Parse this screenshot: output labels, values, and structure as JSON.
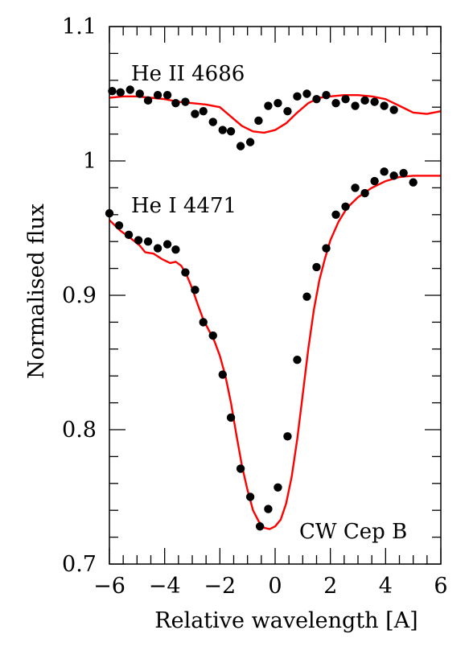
{
  "chart_data": {
    "type": "scatter",
    "title": "",
    "xlabel": "Relative wavelength [A]",
    "ylabel": "Normalised flux",
    "xlim": [
      -6,
      6
    ],
    "ylim": [
      0.7,
      1.1
    ],
    "xticks": [
      -6,
      -4,
      -2,
      0,
      2,
      4,
      6
    ],
    "xtick_labels": [
      "−6",
      "−4",
      "−2",
      "0",
      "2",
      "4",
      "6"
    ],
    "yticks": [
      0.7,
      0.8,
      0.9,
      1.0,
      1.1
    ],
    "ytick_labels": [
      "0.7",
      "0.8",
      "0.9",
      "1",
      "1.1"
    ],
    "grid": false,
    "annotations": {
      "he2": "He II 4686",
      "he1": "He I 4471",
      "star": "CW Cep B"
    },
    "colors": {
      "observed": "#000000",
      "model": "#ff0000"
    },
    "series": [
      {
        "name": "He II 4686",
        "kind": "observed",
        "points": [
          [
            -5.9,
            1.052
          ],
          [
            -5.6,
            1.051
          ],
          [
            -5.25,
            1.053
          ],
          [
            -4.9,
            1.05
          ],
          [
            -4.6,
            1.045
          ],
          [
            -4.25,
            1.049
          ],
          [
            -3.9,
            1.049
          ],
          [
            -3.6,
            1.043
          ],
          [
            -3.25,
            1.044
          ],
          [
            -2.9,
            1.035
          ],
          [
            -2.6,
            1.037
          ],
          [
            -2.25,
            1.029
          ],
          [
            -1.9,
            1.023
          ],
          [
            -1.6,
            1.022
          ],
          [
            -1.25,
            1.011
          ],
          [
            -0.9,
            1.014
          ],
          [
            -0.6,
            1.03
          ],
          [
            -0.25,
            1.041
          ],
          [
            0.1,
            1.043
          ],
          [
            0.45,
            1.037
          ],
          [
            0.8,
            1.048
          ],
          [
            1.15,
            1.05
          ],
          [
            1.5,
            1.046
          ],
          [
            1.85,
            1.049
          ],
          [
            2.2,
            1.043
          ],
          [
            2.55,
            1.046
          ],
          [
            2.9,
            1.041
          ],
          [
            3.25,
            1.045
          ],
          [
            3.6,
            1.044
          ],
          [
            3.95,
            1.041
          ],
          [
            4.3,
            1.038
          ]
        ]
      },
      {
        "name": "He II 4686",
        "kind": "model",
        "points": [
          [
            -6.0,
            1.047
          ],
          [
            -5.5,
            1.048
          ],
          [
            -5.0,
            1.048
          ],
          [
            -4.5,
            1.047
          ],
          [
            -4.0,
            1.046
          ],
          [
            -3.5,
            1.044
          ],
          [
            -3.0,
            1.043
          ],
          [
            -2.5,
            1.042
          ],
          [
            -2.0,
            1.04
          ],
          [
            -1.6,
            1.033
          ],
          [
            -1.2,
            1.026
          ],
          [
            -0.8,
            1.022
          ],
          [
            -0.4,
            1.021
          ],
          [
            0.0,
            1.023
          ],
          [
            0.4,
            1.028
          ],
          [
            0.8,
            1.036
          ],
          [
            1.2,
            1.043
          ],
          [
            1.6,
            1.047
          ],
          [
            2.0,
            1.048
          ],
          [
            2.5,
            1.049
          ],
          [
            3.0,
            1.049
          ],
          [
            3.5,
            1.048
          ],
          [
            4.0,
            1.046
          ],
          [
            4.5,
            1.041
          ],
          [
            5.0,
            1.036
          ],
          [
            5.5,
            1.035
          ],
          [
            6.0,
            1.037
          ]
        ]
      },
      {
        "name": "He I 4471",
        "kind": "observed",
        "points": [
          [
            -6.0,
            0.961
          ],
          [
            -5.65,
            0.952
          ],
          [
            -5.3,
            0.945
          ],
          [
            -4.95,
            0.941
          ],
          [
            -4.6,
            0.94
          ],
          [
            -4.25,
            0.935
          ],
          [
            -3.9,
            0.938
          ],
          [
            -3.6,
            0.934
          ],
          [
            -3.25,
            0.917
          ],
          [
            -2.9,
            0.904
          ],
          [
            -2.6,
            0.88
          ],
          [
            -2.25,
            0.87
          ],
          [
            -1.9,
            0.841
          ],
          [
            -1.6,
            0.809
          ],
          [
            -1.25,
            0.771
          ],
          [
            -0.9,
            0.75
          ],
          [
            -0.55,
            0.728
          ],
          [
            -0.25,
            0.741
          ],
          [
            0.1,
            0.757
          ],
          [
            0.45,
            0.795
          ],
          [
            0.8,
            0.852
          ],
          [
            1.15,
            0.899
          ],
          [
            1.5,
            0.921
          ],
          [
            1.85,
            0.935
          ],
          [
            2.2,
            0.96
          ],
          [
            2.55,
            0.966
          ],
          [
            2.9,
            0.98
          ],
          [
            3.25,
            0.976
          ],
          [
            3.6,
            0.985
          ],
          [
            3.95,
            0.992
          ],
          [
            4.3,
            0.989
          ],
          [
            4.65,
            0.991
          ],
          [
            5.0,
            0.984
          ]
        ]
      },
      {
        "name": "He I 4471",
        "kind": "model",
        "points": [
          [
            -6.0,
            0.956
          ],
          [
            -5.6,
            0.948
          ],
          [
            -5.2,
            0.942
          ],
          [
            -4.9,
            0.937
          ],
          [
            -4.7,
            0.932
          ],
          [
            -4.4,
            0.931
          ],
          [
            -4.1,
            0.927
          ],
          [
            -3.8,
            0.924
          ],
          [
            -3.6,
            0.925
          ],
          [
            -3.4,
            0.922
          ],
          [
            -3.2,
            0.915
          ],
          [
            -3.0,
            0.905
          ],
          [
            -2.8,
            0.893
          ],
          [
            -2.6,
            0.882
          ],
          [
            -2.4,
            0.874
          ],
          [
            -2.2,
            0.866
          ],
          [
            -2.0,
            0.855
          ],
          [
            -1.8,
            0.84
          ],
          [
            -1.6,
            0.82
          ],
          [
            -1.4,
            0.796
          ],
          [
            -1.2,
            0.773
          ],
          [
            -1.0,
            0.755
          ],
          [
            -0.8,
            0.74
          ],
          [
            -0.6,
            0.732
          ],
          [
            -0.4,
            0.727
          ],
          [
            -0.2,
            0.726
          ],
          [
            0.0,
            0.728
          ],
          [
            0.2,
            0.733
          ],
          [
            0.4,
            0.745
          ],
          [
            0.6,
            0.765
          ],
          [
            0.8,
            0.793
          ],
          [
            1.0,
            0.826
          ],
          [
            1.2,
            0.86
          ],
          [
            1.4,
            0.889
          ],
          [
            1.6,
            0.911
          ],
          [
            1.8,
            0.927
          ],
          [
            2.0,
            0.941
          ],
          [
            2.3,
            0.955
          ],
          [
            2.6,
            0.965
          ],
          [
            3.0,
            0.973
          ],
          [
            3.5,
            0.98
          ],
          [
            4.0,
            0.985
          ],
          [
            4.5,
            0.988
          ],
          [
            5.0,
            0.989
          ],
          [
            5.5,
            0.989
          ],
          [
            6.0,
            0.989
          ]
        ]
      }
    ]
  }
}
